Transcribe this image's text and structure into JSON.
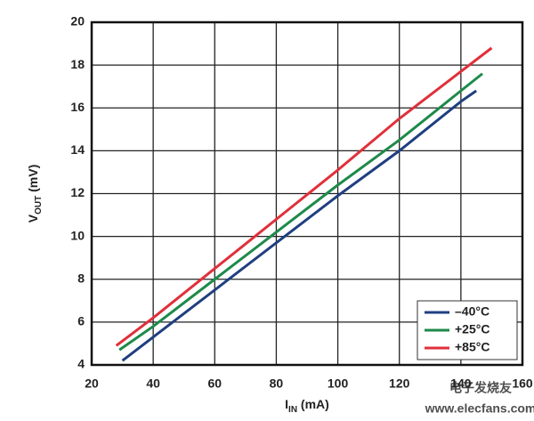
{
  "chart_data": {
    "type": "line",
    "xlabel": [
      "I",
      "IN",
      " (mA)"
    ],
    "ylabel": [
      "V",
      "OUT",
      " (mV)"
    ],
    "xlim": [
      20,
      160
    ],
    "xticks": [
      20,
      40,
      60,
      80,
      100,
      120,
      140,
      160
    ],
    "ylim": [
      4,
      20
    ],
    "yticks": [
      4,
      6,
      8,
      10,
      12,
      14,
      16,
      18,
      20
    ],
    "grid": true,
    "legend": "lower-right",
    "series": [
      {
        "name": "–40°C",
        "color": "#1f3f80",
        "x": [
          30,
          40,
          60,
          80,
          100,
          120,
          140,
          145
        ],
        "values": [
          4.2,
          5.3,
          7.5,
          9.7,
          11.9,
          14.0,
          16.3,
          16.8
        ]
      },
      {
        "name": "+25°C",
        "color": "#1e8a4a",
        "x": [
          29,
          40,
          60,
          80,
          100,
          120,
          140,
          147
        ],
        "values": [
          4.7,
          5.8,
          8.0,
          10.2,
          12.4,
          14.5,
          16.8,
          17.6
        ]
      },
      {
        "name": "+85°C",
        "color": "#e0303a",
        "x": [
          28,
          40,
          60,
          80,
          100,
          120,
          140,
          150
        ],
        "values": [
          4.9,
          6.2,
          8.5,
          10.8,
          13.1,
          15.5,
          17.7,
          18.8
        ]
      }
    ],
    "watermark": [
      "电子发烧友",
      "www.elecfans.com"
    ]
  }
}
